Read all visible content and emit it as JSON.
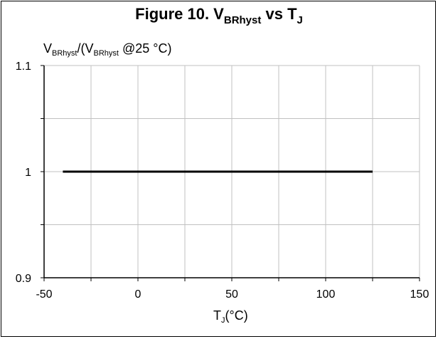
{
  "chart_data": {
    "type": "line",
    "title": {
      "prefix": "Figure 10. V",
      "sub1": "BRhyst",
      "mid": " vs T",
      "sub2": "J"
    },
    "ylabel": {
      "v": "V",
      "sub1": "BRhyst",
      "mid": "/(V",
      "sub2": "BRhyst",
      "suffix": " @25 °C)"
    },
    "xlabel": {
      "t": "T",
      "sub": "J",
      "suffix": "(°C)"
    },
    "xlim": [
      -50,
      150
    ],
    "ylim": [
      0.9,
      1.1
    ],
    "x_ticks": [
      -50,
      -25,
      0,
      25,
      50,
      75,
      100,
      125,
      150
    ],
    "x_tick_labels": [
      "-50",
      "",
      "0",
      "",
      "50",
      "",
      "100",
      "",
      "150"
    ],
    "y_ticks": [
      0.9,
      0.95,
      1.0,
      1.05,
      1.1
    ],
    "y_tick_labels": [
      "0.9",
      "",
      "1",
      "",
      "1.1"
    ],
    "grid": true,
    "line_color": "#000000",
    "grid_color": "#c0c0c0",
    "series": [
      {
        "x": [
          -40,
          125
        ],
        "y": [
          1.0,
          1.0
        ]
      }
    ]
  }
}
